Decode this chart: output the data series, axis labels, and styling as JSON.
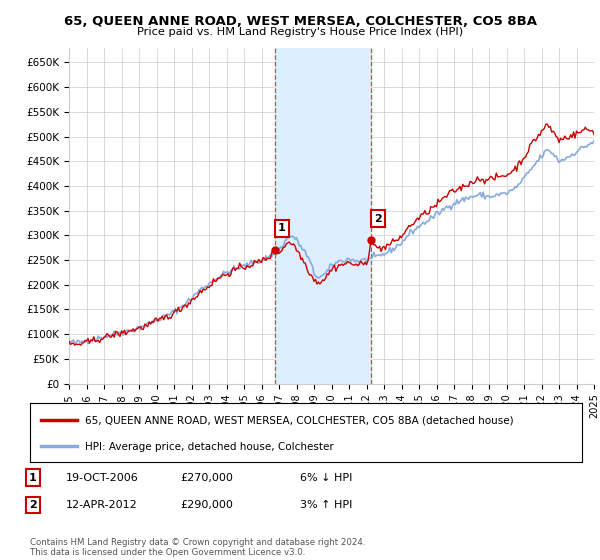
{
  "title1": "65, QUEEN ANNE ROAD, WEST MERSEA, COLCHESTER, CO5 8BA",
  "title2": "Price paid vs. HM Land Registry's House Price Index (HPI)",
  "ylim": [
    0,
    680000
  ],
  "yticks": [
    0,
    50000,
    100000,
    150000,
    200000,
    250000,
    300000,
    350000,
    400000,
    450000,
    500000,
    550000,
    600000,
    650000
  ],
  "ytick_labels": [
    "£0",
    "£50K",
    "£100K",
    "£150K",
    "£200K",
    "£250K",
    "£300K",
    "£350K",
    "£400K",
    "£450K",
    "£500K",
    "£550K",
    "£600K",
    "£650K"
  ],
  "background_color": "#ffffff",
  "grid_color": "#cccccc",
  "shade_color": "#ddeeff",
  "dashed_line_color": "#dd4444",
  "point1_x": 2006.79,
  "point1_y": 270000,
  "point2_x": 2012.28,
  "point2_y": 290000,
  "sale1_label": "1",
  "sale2_label": "2",
  "legend_line1": "65, QUEEN ANNE ROAD, WEST MERSEA, COLCHESTER, CO5 8BA (detached house)",
  "legend_line2": "HPI: Average price, detached house, Colchester",
  "ann1_date": "19-OCT-2006",
  "ann1_price": "£270,000",
  "ann1_hpi": "6% ↓ HPI",
  "ann2_date": "12-APR-2012",
  "ann2_price": "£290,000",
  "ann2_hpi": "3% ↑ HPI",
  "footer": "Contains HM Land Registry data © Crown copyright and database right 2024.\nThis data is licensed under the Open Government Licence v3.0.",
  "red_line_color": "#cc0000",
  "blue_line_color": "#88aadd",
  "xmin": 1995,
  "xmax": 2025
}
